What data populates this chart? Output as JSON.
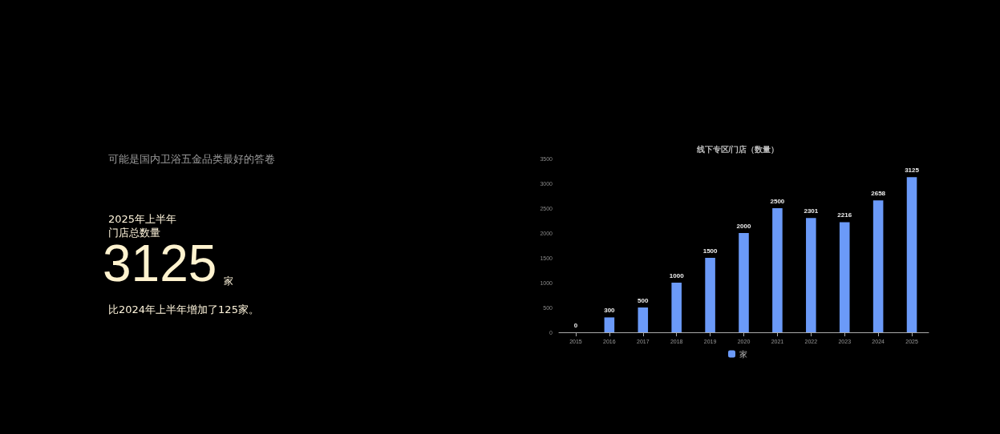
{
  "chart_data": [
    {
      "type": "other",
      "title": "可能是国内卫浴五金品类最好的答卷",
      "annotations": [
        "2025年上半年",
        "门店总数量",
        "3125",
        "家",
        "比2024年上半年增加了125家。"
      ]
    },
    {
      "type": "bar",
      "title": "线下专区/门店（数量）",
      "categories": [
        "2015",
        "2016",
        "2017",
        "2018",
        "2019",
        "2020",
        "2021",
        "2022",
        "2023",
        "2024",
        "2025"
      ],
      "series": [
        {
          "name": "家",
          "color": "#6b9af8",
          "values": [
            0,
            300,
            500,
            1000,
            1500,
            2000,
            2500,
            2301,
            2216,
            2658,
            3125
          ]
        }
      ],
      "ylim": [
        0,
        3500
      ],
      "yticks": [
        0,
        500,
        1000,
        1500,
        2000,
        2500,
        3000,
        3500
      ],
      "data_labels": true,
      "grid": false,
      "legend": "bottom"
    }
  ]
}
